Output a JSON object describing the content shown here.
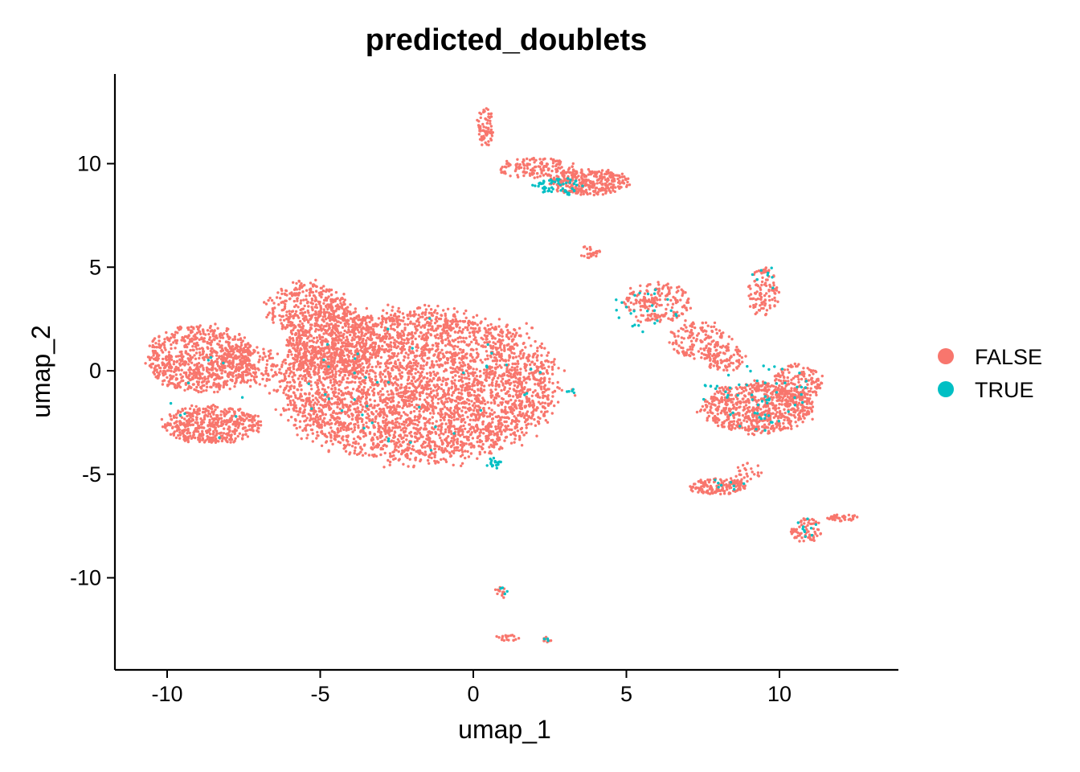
{
  "chart_data": {
    "type": "scatter",
    "title": "predicted_doublets",
    "xlabel": "umap_1",
    "ylabel": "umap_2",
    "xlim": [
      -11.7,
      13.8
    ],
    "ylim": [
      -14.2,
      14.2
    ],
    "xticks": [
      -10,
      -5,
      0,
      5,
      10
    ],
    "yticks": [
      -10,
      -5,
      0,
      5,
      10
    ],
    "xtick_labels": [
      "-10",
      "-5",
      "0",
      "5",
      "10"
    ],
    "ytick_labels": [
      "-10",
      "-5",
      "0",
      "5",
      "10"
    ],
    "grid": false,
    "legend_position": "right",
    "series": [
      {
        "name": "FALSE",
        "color": "#F8766D",
        "clusters": [
          {
            "cx": -8.9,
            "cy": 0.6,
            "rx": 1.7,
            "ry": 1.6,
            "n": 750
          },
          {
            "cx": -8.5,
            "cy": -2.6,
            "rx": 1.6,
            "ry": 0.9,
            "n": 480
          },
          {
            "cx": -7.3,
            "cy": 0.3,
            "rx": 1.0,
            "ry": 1.0,
            "n": 160
          },
          {
            "cx": -5.4,
            "cy": 3.0,
            "rx": 1.3,
            "ry": 1.3,
            "n": 320
          },
          {
            "cx": -1.8,
            "cy": -0.7,
            "rx": 4.5,
            "ry": 3.6,
            "n": 3900
          },
          {
            "cx": -4.6,
            "cy": 1.4,
            "rx": 1.5,
            "ry": 1.8,
            "n": 500
          },
          {
            "cx": 0.4,
            "cy": 11.8,
            "rx": 0.25,
            "ry": 1.0,
            "n": 70
          },
          {
            "cx": 2.0,
            "cy": 9.8,
            "rx": 1.2,
            "ry": 0.5,
            "n": 140
          },
          {
            "cx": 3.8,
            "cy": 9.1,
            "rx": 1.3,
            "ry": 0.6,
            "n": 330
          },
          {
            "cx": 3.8,
            "cy": 5.7,
            "rx": 0.35,
            "ry": 0.35,
            "n": 25
          },
          {
            "cx": 6.0,
            "cy": 3.3,
            "rx": 1.1,
            "ry": 1.0,
            "n": 190
          },
          {
            "cx": 7.4,
            "cy": 1.5,
            "rx": 1.0,
            "ry": 0.9,
            "n": 150
          },
          {
            "cx": 8.2,
            "cy": 0.6,
            "rx": 0.7,
            "ry": 0.6,
            "n": 90
          },
          {
            "cx": 9.5,
            "cy": 3.8,
            "rx": 0.5,
            "ry": 1.2,
            "n": 110
          },
          {
            "cx": 9.3,
            "cy": -1.8,
            "rx": 1.8,
            "ry": 1.2,
            "n": 700
          },
          {
            "cx": 10.6,
            "cy": -0.6,
            "rx": 0.8,
            "ry": 0.9,
            "n": 160
          },
          {
            "cx": 8.0,
            "cy": -5.6,
            "rx": 0.9,
            "ry": 0.4,
            "n": 150
          },
          {
            "cx": 9.0,
            "cy": -4.9,
            "rx": 0.4,
            "ry": 0.5,
            "n": 25
          },
          {
            "cx": 10.9,
            "cy": -7.7,
            "rx": 0.5,
            "ry": 0.6,
            "n": 70
          },
          {
            "cx": 12.1,
            "cy": -7.1,
            "rx": 0.5,
            "ry": 0.15,
            "n": 40
          },
          {
            "cx": 0.9,
            "cy": -10.7,
            "rx": 0.2,
            "ry": 0.3,
            "n": 15
          },
          {
            "cx": 1.1,
            "cy": -12.9,
            "rx": 0.4,
            "ry": 0.15,
            "n": 20
          },
          {
            "cx": 2.4,
            "cy": -13.0,
            "rx": 0.15,
            "ry": 0.15,
            "n": 10
          }
        ]
      },
      {
        "name": "TRUE",
        "color": "#00BFC4",
        "clusters": [
          {
            "cx": 2.8,
            "cy": 8.9,
            "rx": 0.8,
            "ry": 0.4,
            "n": 55
          },
          {
            "cx": 0.6,
            "cy": -4.5,
            "rx": 0.3,
            "ry": 0.3,
            "n": 18
          },
          {
            "cx": -1.5,
            "cy": -0.5,
            "rx": 4.0,
            "ry": 3.2,
            "n": 40
          },
          {
            "cx": -8.5,
            "cy": -1.2,
            "rx": 1.5,
            "ry": 2.0,
            "n": 10
          },
          {
            "cx": 5.5,
            "cy": 2.8,
            "rx": 1.2,
            "ry": 1.2,
            "n": 25
          },
          {
            "cx": 9.3,
            "cy": -1.2,
            "rx": 1.8,
            "ry": 1.5,
            "n": 60
          },
          {
            "cx": 9.6,
            "cy": 4.5,
            "rx": 0.5,
            "ry": 0.6,
            "n": 8
          },
          {
            "cx": 8.3,
            "cy": -5.5,
            "rx": 0.6,
            "ry": 0.3,
            "n": 8
          },
          {
            "cx": 10.9,
            "cy": -7.6,
            "rx": 0.4,
            "ry": 0.5,
            "n": 10
          },
          {
            "cx": 3.2,
            "cy": -1.0,
            "rx": 0.15,
            "ry": 0.1,
            "n": 5
          },
          {
            "cx": 1.0,
            "cy": -10.7,
            "rx": 0.15,
            "ry": 0.3,
            "n": 4
          },
          {
            "cx": 2.4,
            "cy": -13.0,
            "rx": 0.1,
            "ry": 0.1,
            "n": 3
          }
        ]
      }
    ]
  }
}
